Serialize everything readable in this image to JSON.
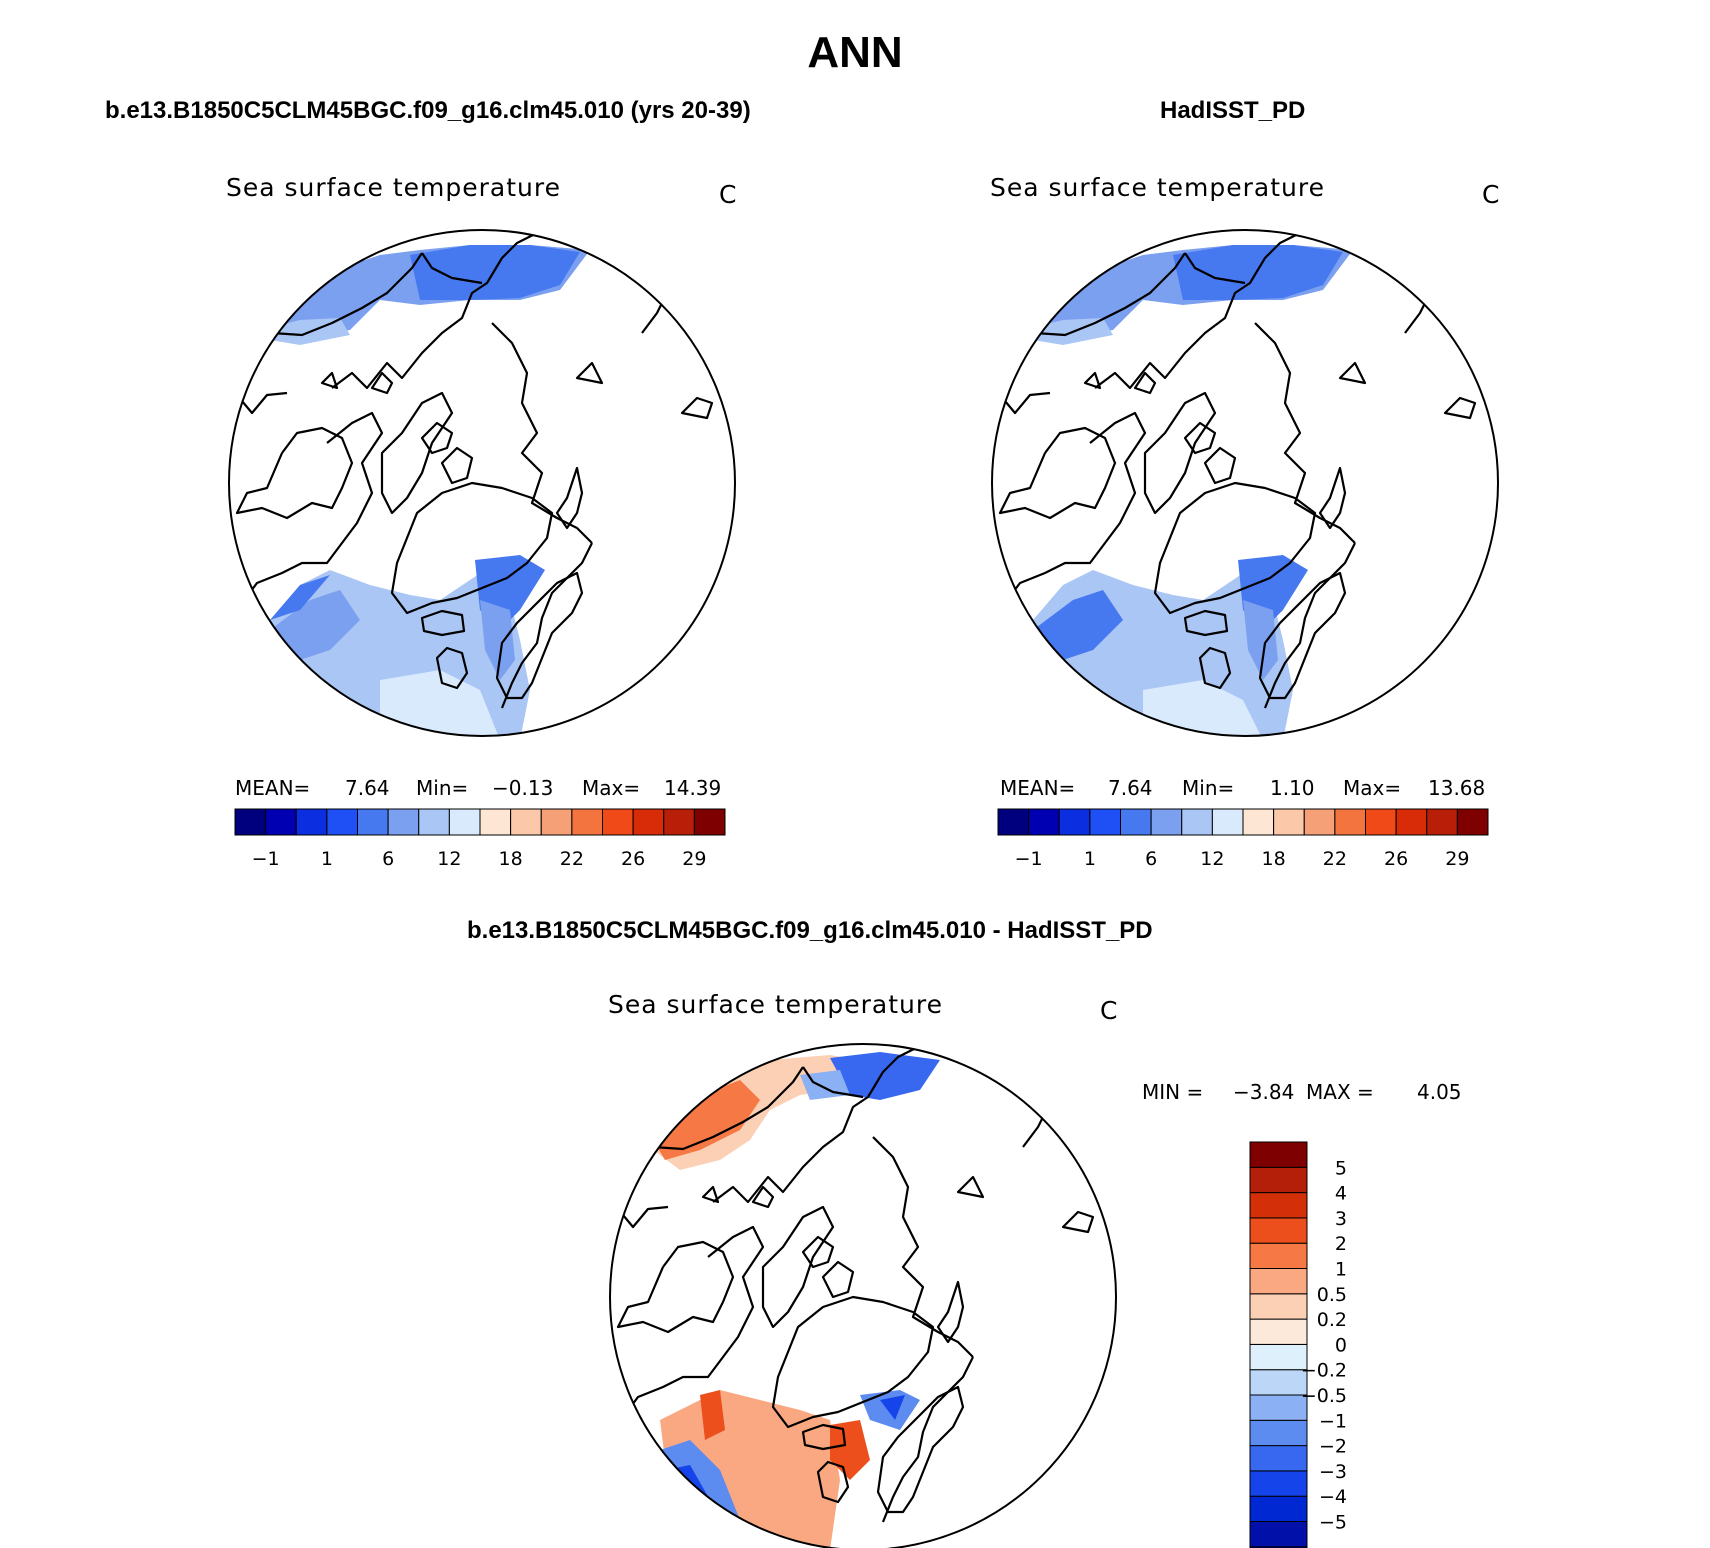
{
  "main_title": "ANN",
  "panels": [
    {
      "case_title": "b.e13.B1850C5CLM45BGC.f09_g16.clm45.010 (yrs 20-39)",
      "variable": "Sea surface temperature",
      "units": "C",
      "mean_label": "MEAN=",
      "mean": "7.64",
      "min_label": "Min=",
      "min": "−0.13",
      "max_label": "Max=",
      "max": "14.39"
    },
    {
      "case_title": "HadISST_PD",
      "variable": "Sea surface temperature",
      "units": "C",
      "mean_label": "MEAN=",
      "mean": "7.64",
      "min_label": "Min=",
      "min": "1.10",
      "max_label": "Max=",
      "max": "13.68"
    }
  ],
  "diff_panel": {
    "case_title": "b.e13.B1850C5CLM45BGC.f09_g16.clm45.010 - HadISST_PD",
    "variable": "Sea surface temperature",
    "units": "C",
    "min_label": "MIN =",
    "min": "−3.84",
    "max_label": "MAX =",
    "max": "4.05"
  },
  "abs_colorbar": {
    "colors": [
      "#00007f",
      "#0000b2",
      "#0a2ee0",
      "#1e50f5",
      "#4678f0",
      "#7ca0f0",
      "#aac6f5",
      "#d8eafc",
      "#fde6d4",
      "#fbc8aa",
      "#f6a078",
      "#f4743f",
      "#ef4a18",
      "#d82c08",
      "#b81e08",
      "#7f0000"
    ],
    "tick_labels": [
      "−1",
      "1",
      "6",
      "12",
      "18",
      "22",
      "26",
      "29"
    ]
  },
  "diff_colorbar": {
    "colors": [
      "#00007f",
      "#0010a8",
      "#0028d2",
      "#1444ea",
      "#3868f0",
      "#5c8cf0",
      "#8cb0f4",
      "#bcd6f8",
      "#dff0fd",
      "#fde9da",
      "#fcd0b4",
      "#f9a882",
      "#f67845",
      "#ec4e1c",
      "#d3300a",
      "#b31f08",
      "#7f0000"
    ],
    "tick_labels": [
      "−5",
      "−4",
      "−3",
      "−2",
      "−1",
      "−0.5",
      "−0.2",
      "0",
      "0.2",
      "0.5",
      "1",
      "2",
      "3",
      "4",
      "5"
    ]
  }
}
